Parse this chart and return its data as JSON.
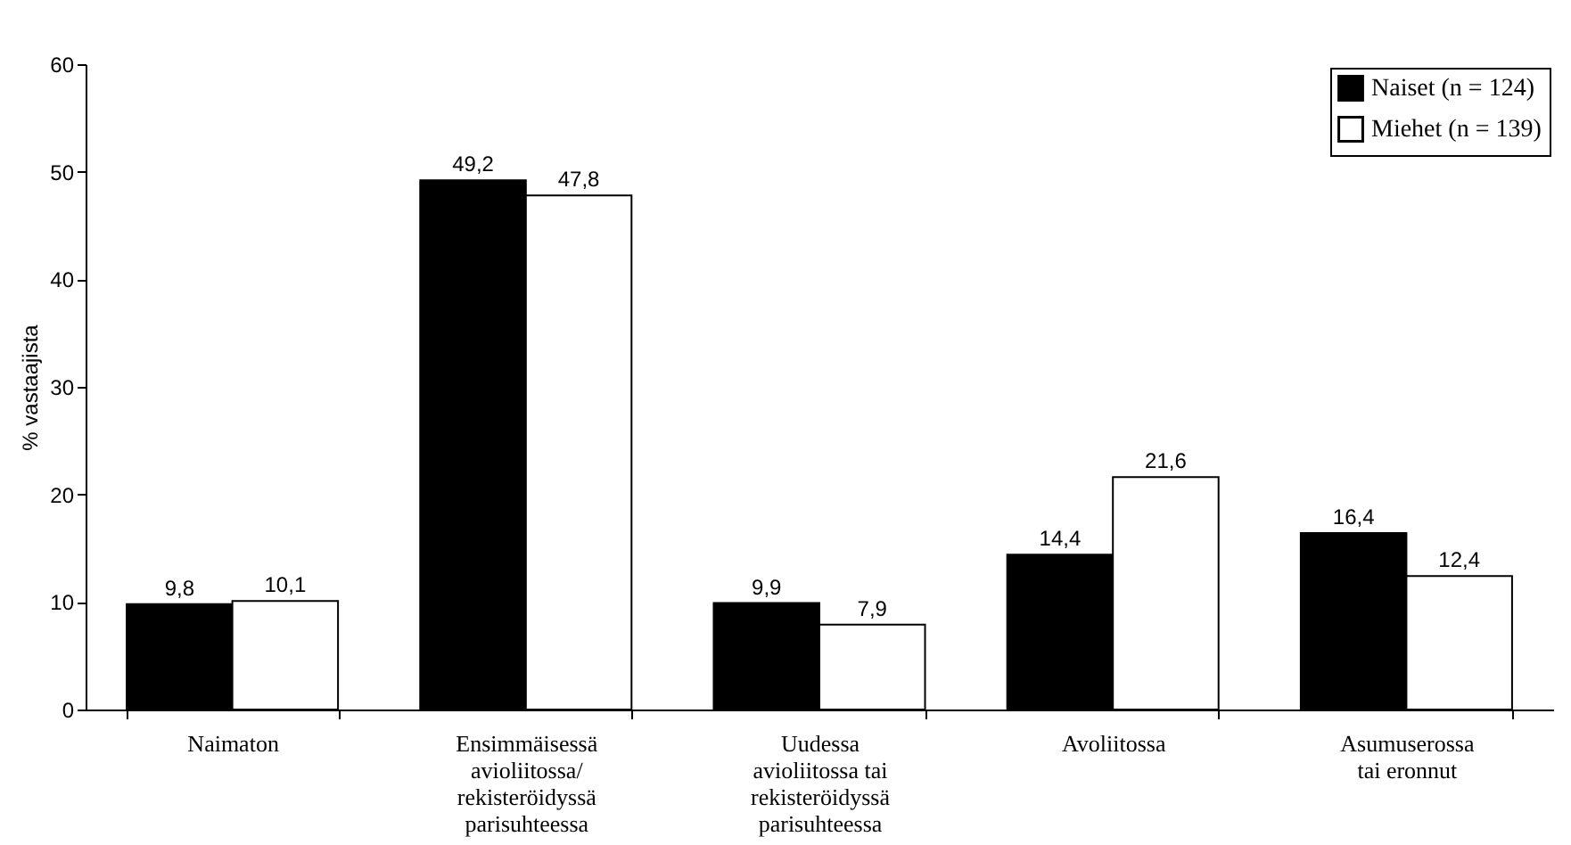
{
  "chart_data": {
    "type": "bar",
    "ylabel": "% vastaajista",
    "categories": [
      "Naimaton",
      "Ensimmäisessä\navioliitossa/\nrekisteröidyssä\nparisuhteessa",
      "Uudessa\navioliitossa tai\nrekisteröidyssä\nparisuhteessa",
      "Avoliitossa",
      "Asumuserossa\ntai eronnut"
    ],
    "series": [
      {
        "name": "Naiset (n = 124)",
        "color": "#000000",
        "values": [
          9.8,
          49.2,
          9.9,
          14.4,
          16.4
        ],
        "value_labels": [
          "9,8",
          "49,2",
          "9,9",
          "14,4",
          "16,4"
        ]
      },
      {
        "name": "Miehet (n = 139)",
        "color": "#ffffff",
        "values": [
          10.1,
          47.8,
          7.9,
          21.6,
          12.4
        ],
        "value_labels": [
          "10,1",
          "47,8",
          "7,9",
          "21,6",
          "12,4"
        ]
      }
    ],
    "ylim": [
      0,
      60
    ],
    "yticks": [
      0,
      10,
      20,
      30,
      40,
      50,
      60
    ],
    "grid": false,
    "legend": "top right"
  }
}
